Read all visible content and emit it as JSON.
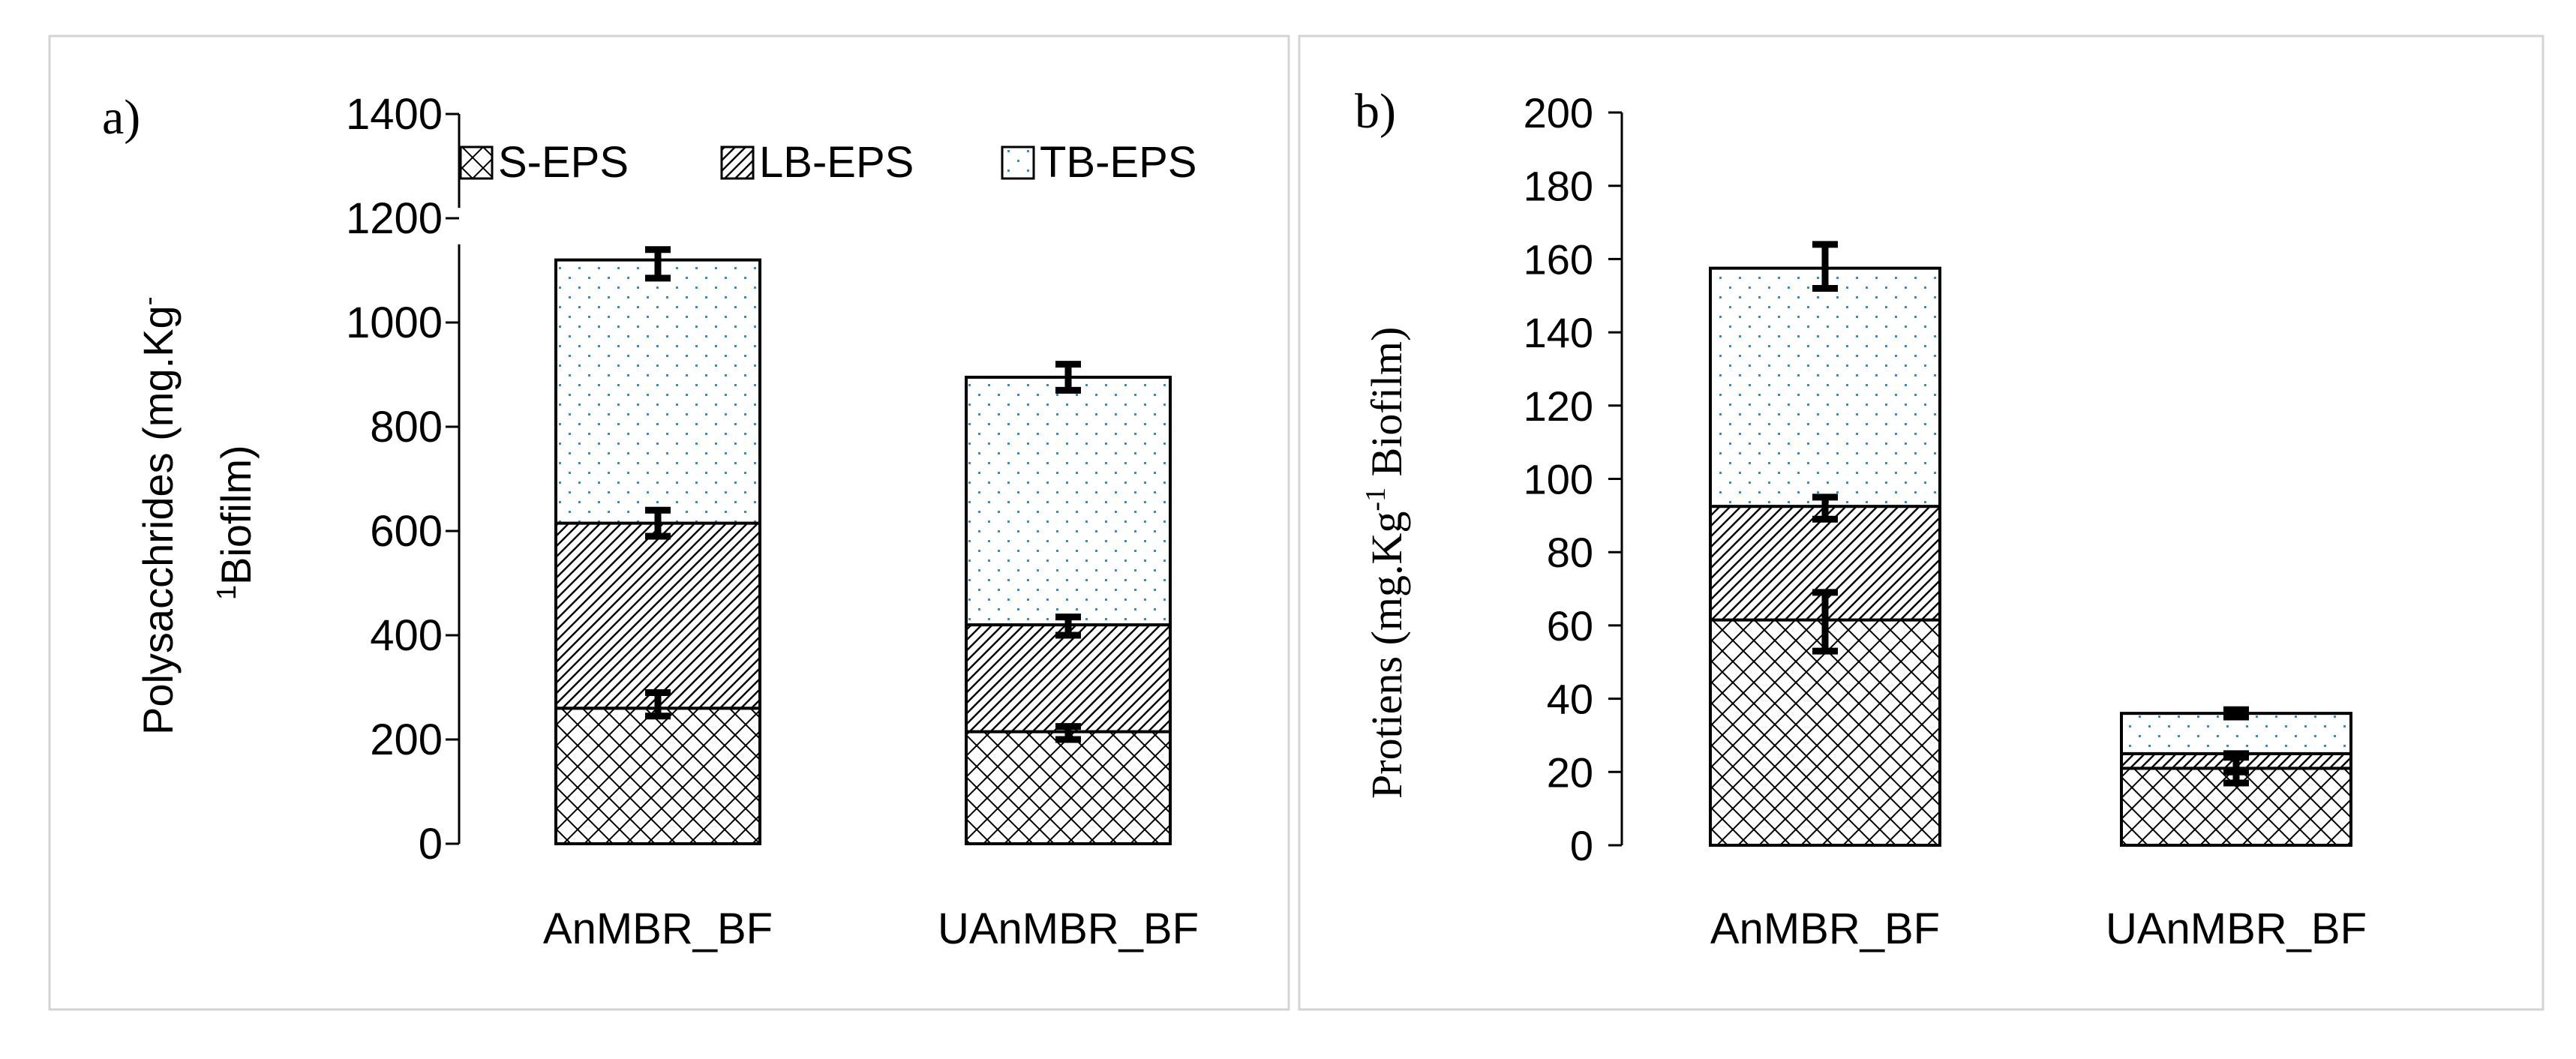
{
  "chart_data": [
    {
      "type": "bar",
      "stacked": true,
      "panel_label": "a)",
      "ylabel": "Polysacchrides (mg.Kg",
      "ylabel_sup": "-",
      "ylabel_line2_sup": "1",
      "ylabel_line2": "Biofilm)",
      "ylim": [
        0,
        1400
      ],
      "yticks": [
        0,
        200,
        400,
        600,
        800,
        1000,
        1200,
        1400
      ],
      "categories": [
        "AnMBR_BF",
        "UAnMBR_BF"
      ],
      "legend_position": "top",
      "series": [
        {
          "name": "S-EPS",
          "pattern": "crosshatch",
          "values": [
            260,
            215
          ],
          "error_top": [
            290,
            225
          ],
          "error_bottom": [
            245,
            200
          ]
        },
        {
          "name": "LB-EPS",
          "pattern": "diagonal",
          "values": [
            355,
            205
          ],
          "error_top": [
            640,
            435
          ],
          "error_bottom": [
            590,
            400
          ]
        },
        {
          "name": "TB-EPS",
          "pattern": "dots",
          "values": [
            505,
            475
          ],
          "error_top": [
            1140,
            920
          ],
          "error_bottom": [
            1085,
            870
          ]
        }
      ]
    },
    {
      "type": "bar",
      "stacked": true,
      "panel_label": "b)",
      "ylabel": "Protiens  (mg.Kg",
      "ylabel_sup": "-1",
      "ylabel_tail": " Biofilm)",
      "ylim": [
        0,
        200
      ],
      "yticks": [
        0,
        20,
        40,
        60,
        80,
        100,
        120,
        140,
        160,
        180,
        200
      ],
      "categories": [
        "AnMBR_BF",
        "UAnMBR_BF"
      ],
      "series": [
        {
          "name": "S-EPS",
          "pattern": "crosshatch",
          "values": [
            61.5,
            21
          ],
          "error_top": [
            69,
            24
          ],
          "error_bottom": [
            53,
            17
          ]
        },
        {
          "name": "LB-EPS",
          "pattern": "diagonal",
          "values": [
            31,
            4
          ],
          "error_top": [
            95,
            25
          ],
          "error_bottom": [
            89,
            20
          ]
        },
        {
          "name": "TB-EPS",
          "pattern": "dots",
          "values": [
            65,
            11
          ],
          "error_top": [
            164,
            37
          ],
          "error_bottom": [
            152,
            35
          ]
        }
      ]
    }
  ],
  "colors": {
    "dots": "#2e8fd0",
    "ink": "#000000",
    "frame": "#d4d4d4"
  }
}
